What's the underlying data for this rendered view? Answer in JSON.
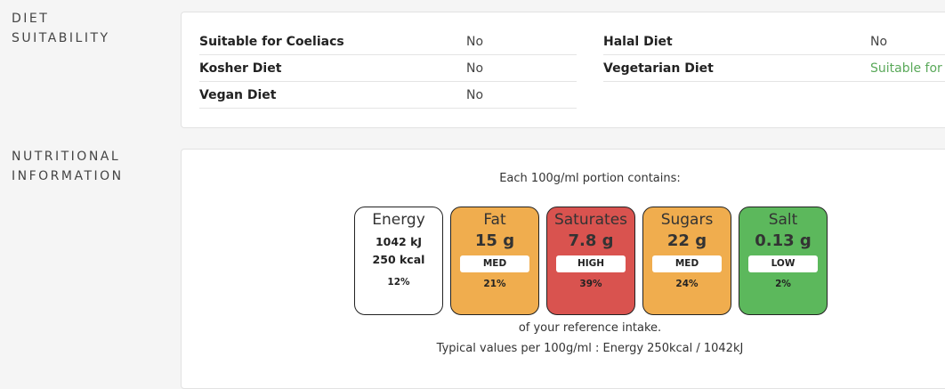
{
  "diet": {
    "heading": "DIET SUITABILITY",
    "rows": [
      {
        "label": "Suitable for Coeliacs",
        "value": "No"
      },
      {
        "label": "Halal Diet",
        "value": "No"
      },
      {
        "label": "Kosher Diet",
        "value": "No"
      },
      {
        "label": "Vegetarian Diet",
        "value": "Suitable for",
        "status": "suitable"
      },
      {
        "label": "Vegan Diet",
        "value": "No"
      }
    ],
    "colors": {
      "suitable": "#5aa95a"
    }
  },
  "nutrition": {
    "heading": "NUTRITIONAL INFORMATION",
    "intro": "Each 100g/ml portion contains:",
    "energy": {
      "name": "Energy",
      "kj": "1042 kJ",
      "kcal": "250 kcal",
      "percent": "12%"
    },
    "tiles": [
      {
        "name": "Fat",
        "value": "15 g",
        "level": "MED",
        "percent": "21%",
        "color": "#f0ad4e"
      },
      {
        "name": "Saturates",
        "value": "7.8 g",
        "level": "HIGH",
        "percent": "39%",
        "color": "#d9534f"
      },
      {
        "name": "Sugars",
        "value": "22 g",
        "level": "MED",
        "percent": "24%",
        "color": "#f0ad4e"
      },
      {
        "name": "Salt",
        "value": "0.13 g",
        "level": "LOW",
        "percent": "2%",
        "color": "#5cb85c"
      }
    ],
    "reference": "of your reference intake.",
    "typical": "Typical values per 100g/ml : Energy 250kcal / 1042kJ"
  }
}
